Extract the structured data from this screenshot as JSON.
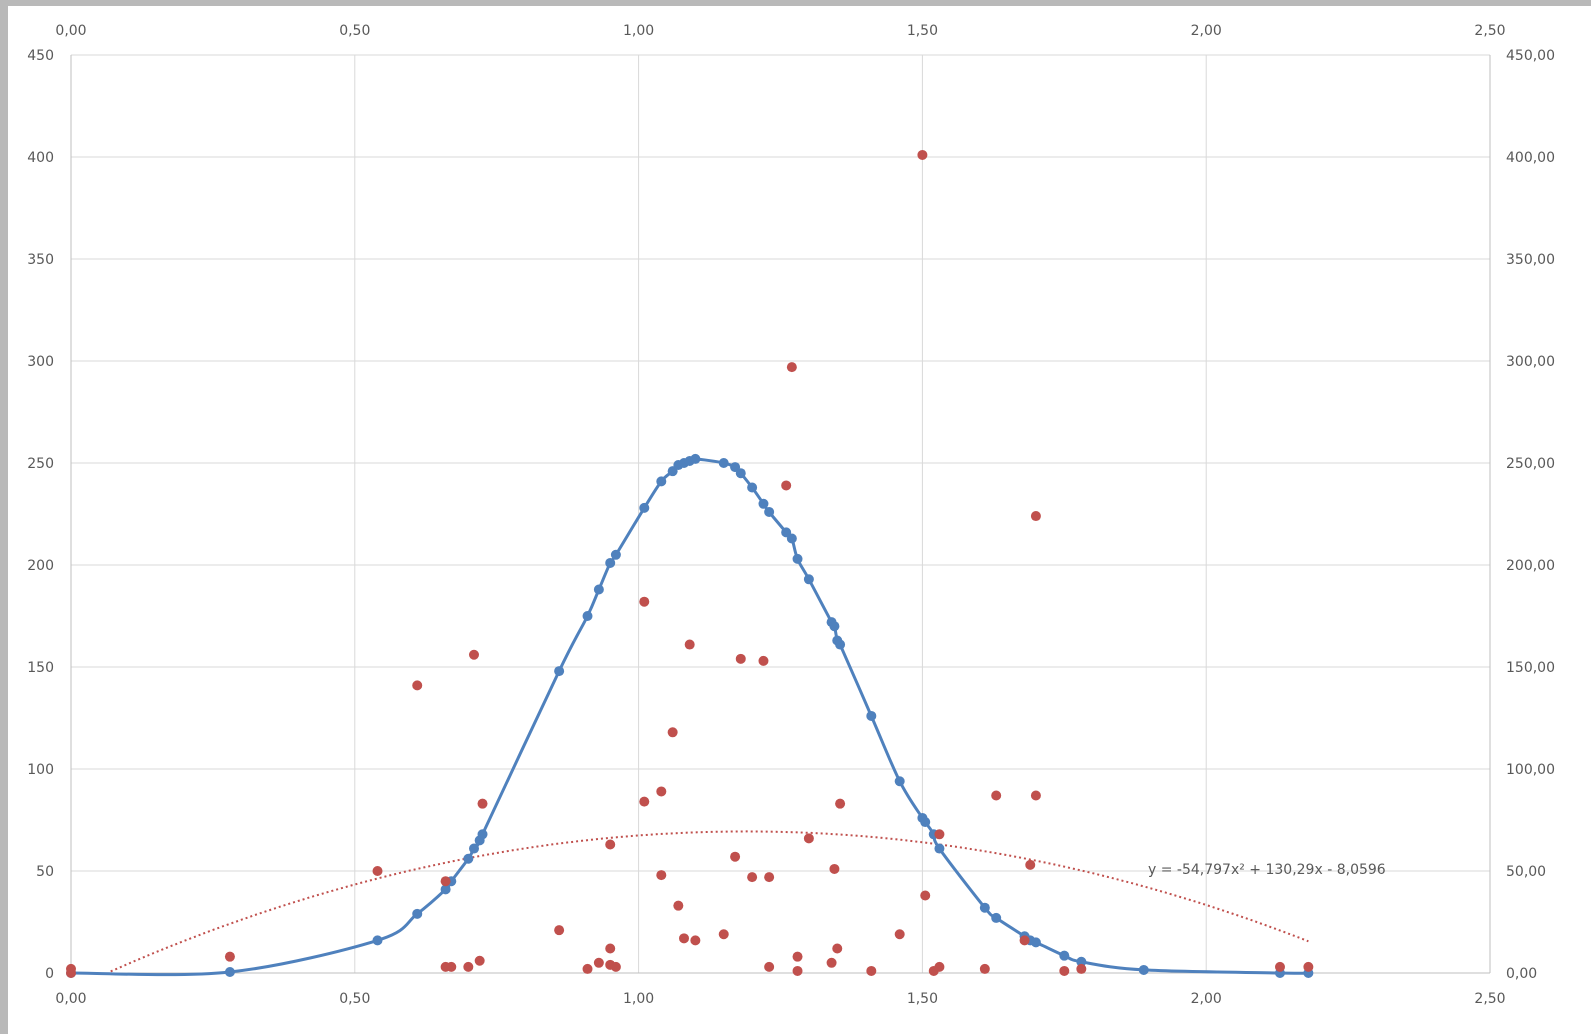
{
  "chart_data": {
    "type": "scatter",
    "title": "",
    "xlim": [
      0,
      2.5
    ],
    "ylim": [
      0,
      450
    ],
    "x_ticks": [
      "0,00",
      "0,50",
      "1,00",
      "1,50",
      "2,00",
      "2,50"
    ],
    "y_ticks_left": [
      "0",
      "50",
      "100",
      "150",
      "200",
      "250",
      "300",
      "350",
      "400",
      "450"
    ],
    "y_ticks_right": [
      "0,00",
      "50,00",
      "100,00",
      "150,00",
      "200,00",
      "250,00",
      "300,00",
      "350,00",
      "400,00",
      "450,00"
    ],
    "grid": true,
    "legend": "none",
    "colors": {
      "series1": "#4f81bd",
      "series2": "#c0504d",
      "trend": "#c0504d",
      "grid": "#d9d9d9",
      "tick_text": "#595959"
    },
    "series": [
      {
        "style": "line-markers",
        "color": "#4f81bd",
        "x": [
          0.0,
          0.28,
          0.54,
          0.61,
          0.66,
          0.67,
          0.7,
          0.71,
          0.72,
          0.725,
          0.86,
          0.91,
          0.93,
          0.95,
          0.96,
          1.01,
          1.04,
          1.06,
          1.07,
          1.08,
          1.09,
          1.1,
          1.15,
          1.17,
          1.18,
          1.2,
          1.22,
          1.23,
          1.26,
          1.27,
          1.28,
          1.3,
          1.34,
          1.345,
          1.35,
          1.355,
          1.41,
          1.46,
          1.5,
          1.505,
          1.52,
          1.53,
          1.61,
          1.63,
          1.68,
          1.69,
          1.7,
          1.75,
          1.78,
          1.89,
          2.13,
          2.18
        ],
        "y": [
          0.0,
          0.5,
          16,
          29,
          41,
          45,
          56,
          61,
          65,
          68,
          148,
          175,
          188,
          201,
          205,
          228,
          241,
          246,
          249,
          250,
          251,
          252,
          250,
          248,
          245,
          238,
          230,
          226,
          216,
          213,
          203,
          193,
          172,
          170,
          163,
          161,
          126,
          94,
          76,
          74,
          68,
          61,
          32,
          27,
          18,
          16,
          15,
          8.5,
          5.5,
          1.5,
          0.0,
          0.0
        ]
      },
      {
        "style": "markers",
        "color": "#c0504d",
        "x": [
          0.0,
          0.0,
          0.28,
          0.54,
          0.61,
          0.66,
          0.66,
          0.67,
          0.7,
          0.71,
          0.72,
          0.725,
          0.86,
          0.91,
          0.93,
          0.95,
          0.95,
          0.95,
          0.96,
          1.01,
          1.01,
          1.04,
          1.04,
          1.06,
          1.07,
          1.08,
          1.09,
          1.1,
          1.15,
          1.17,
          1.18,
          1.2,
          1.22,
          1.23,
          1.23,
          1.26,
          1.27,
          1.28,
          1.28,
          1.3,
          1.34,
          1.345,
          1.35,
          1.355,
          1.41,
          1.46,
          1.5,
          1.505,
          1.52,
          1.53,
          1.53,
          1.61,
          1.63,
          1.68,
          1.69,
          1.7,
          1.7,
          1.75,
          1.78,
          2.13,
          2.18
        ],
        "y": [
          2,
          0,
          8,
          50,
          141,
          3,
          45,
          3,
          3,
          156,
          6,
          83,
          21,
          2,
          5,
          4,
          12,
          63,
          3,
          84,
          182,
          48,
          89,
          118,
          33,
          17,
          161,
          16,
          19,
          57,
          154,
          47,
          153,
          47,
          3,
          239,
          297,
          8,
          1,
          66,
          5,
          51,
          12,
          83,
          1,
          19,
          401,
          38,
          1,
          68,
          3,
          2,
          87,
          16,
          53,
          87,
          224,
          1,
          2,
          3,
          3
        ]
      }
    ],
    "trendline": {
      "type": "polynomial",
      "order": 2,
      "series_index": 1,
      "coefficients": [
        -54.797,
        130.29,
        -8.0596
      ],
      "x_range": [
        0.07,
        2.18
      ],
      "style": "dotted",
      "label": "y = -54,797x² + 130,29x - 8,0596"
    }
  }
}
